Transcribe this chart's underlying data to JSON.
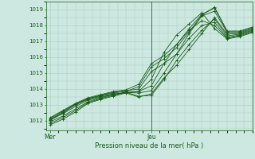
{
  "bg_color": "#cce8e0",
  "grid_color": "#aaccbb",
  "line_color": "#1a5c1a",
  "vline_color": "#556655",
  "xlabel": "Pression niveau de la mer( hPa )",
  "x_ticks": [
    0,
    48
  ],
  "x_tick_labels": [
    "Mer",
    "Jeu"
  ],
  "ylim": [
    1011.4,
    1019.5
  ],
  "xlim": [
    -2,
    96
  ],
  "yticks": [
    1012,
    1013,
    1014,
    1015,
    1016,
    1017,
    1018,
    1019
  ],
  "vline_x": 48,
  "series": [
    [
      0,
      1011.75,
      6,
      1012.1,
      12,
      1012.55,
      18,
      1013.1,
      24,
      1013.35,
      30,
      1013.55,
      36,
      1013.75,
      42,
      1013.85,
      48,
      1014.6,
      54,
      1016.3,
      60,
      1017.4,
      66,
      1018.1,
      72,
      1018.8,
      78,
      1017.8,
      84,
      1017.15,
      90,
      1017.3,
      96,
      1017.55
    ],
    [
      0,
      1011.85,
      6,
      1012.2,
      12,
      1012.65,
      18,
      1013.15,
      24,
      1013.4,
      30,
      1013.6,
      36,
      1013.8,
      42,
      1013.85,
      48,
      1014.2,
      54,
      1015.6,
      60,
      1016.8,
      66,
      1017.7,
      72,
      1018.3,
      78,
      1018.0,
      84,
      1017.2,
      90,
      1017.35,
      96,
      1017.6
    ],
    [
      0,
      1011.95,
      6,
      1012.3,
      12,
      1012.75,
      18,
      1013.2,
      24,
      1013.45,
      30,
      1013.65,
      36,
      1013.8,
      42,
      1013.75,
      48,
      1013.9,
      54,
      1015.0,
      60,
      1016.2,
      66,
      1017.2,
      72,
      1018.0,
      78,
      1018.2,
      84,
      1017.25,
      90,
      1017.4,
      96,
      1017.65
    ],
    [
      0,
      1012.05,
      6,
      1012.45,
      12,
      1012.9,
      18,
      1013.3,
      24,
      1013.5,
      30,
      1013.65,
      36,
      1013.8,
      42,
      1013.55,
      48,
      1013.6,
      54,
      1014.6,
      60,
      1015.8,
      66,
      1016.8,
      72,
      1017.7,
      78,
      1018.4,
      84,
      1017.35,
      90,
      1017.45,
      96,
      1017.7
    ],
    [
      0,
      1012.1,
      6,
      1012.5,
      12,
      1013.0,
      18,
      1013.35,
      24,
      1013.55,
      30,
      1013.7,
      36,
      1013.75,
      42,
      1013.5,
      48,
      1013.7,
      54,
      1014.7,
      60,
      1015.5,
      66,
      1016.5,
      72,
      1017.5,
      78,
      1018.5,
      84,
      1017.45,
      90,
      1017.5,
      96,
      1017.75
    ],
    [
      0,
      1012.15,
      6,
      1012.6,
      12,
      1013.05,
      18,
      1013.4,
      24,
      1013.6,
      30,
      1013.8,
      36,
      1013.9,
      42,
      1014.0,
      48,
      1015.1,
      54,
      1015.6,
      60,
      1016.2,
      66,
      1017.5,
      72,
      1018.6,
      78,
      1018.9,
      84,
      1017.55,
      90,
      1017.55,
      96,
      1017.8
    ],
    [
      0,
      1012.2,
      6,
      1012.65,
      12,
      1013.1,
      18,
      1013.45,
      24,
      1013.65,
      30,
      1013.85,
      36,
      1013.95,
      42,
      1014.3,
      48,
      1015.6,
      54,
      1016.1,
      60,
      1016.8,
      66,
      1017.8,
      72,
      1018.7,
      78,
      1019.1,
      84,
      1017.6,
      90,
      1017.6,
      96,
      1017.85
    ],
    [
      0,
      1012.05,
      6,
      1012.55,
      12,
      1013.05,
      18,
      1013.4,
      24,
      1013.6,
      30,
      1013.75,
      36,
      1013.85,
      42,
      1014.15,
      48,
      1015.4,
      54,
      1015.9,
      60,
      1016.6,
      66,
      1017.6,
      72,
      1018.65,
      78,
      1019.15,
      84,
      1017.65,
      90,
      1017.65,
      96,
      1017.9
    ]
  ]
}
